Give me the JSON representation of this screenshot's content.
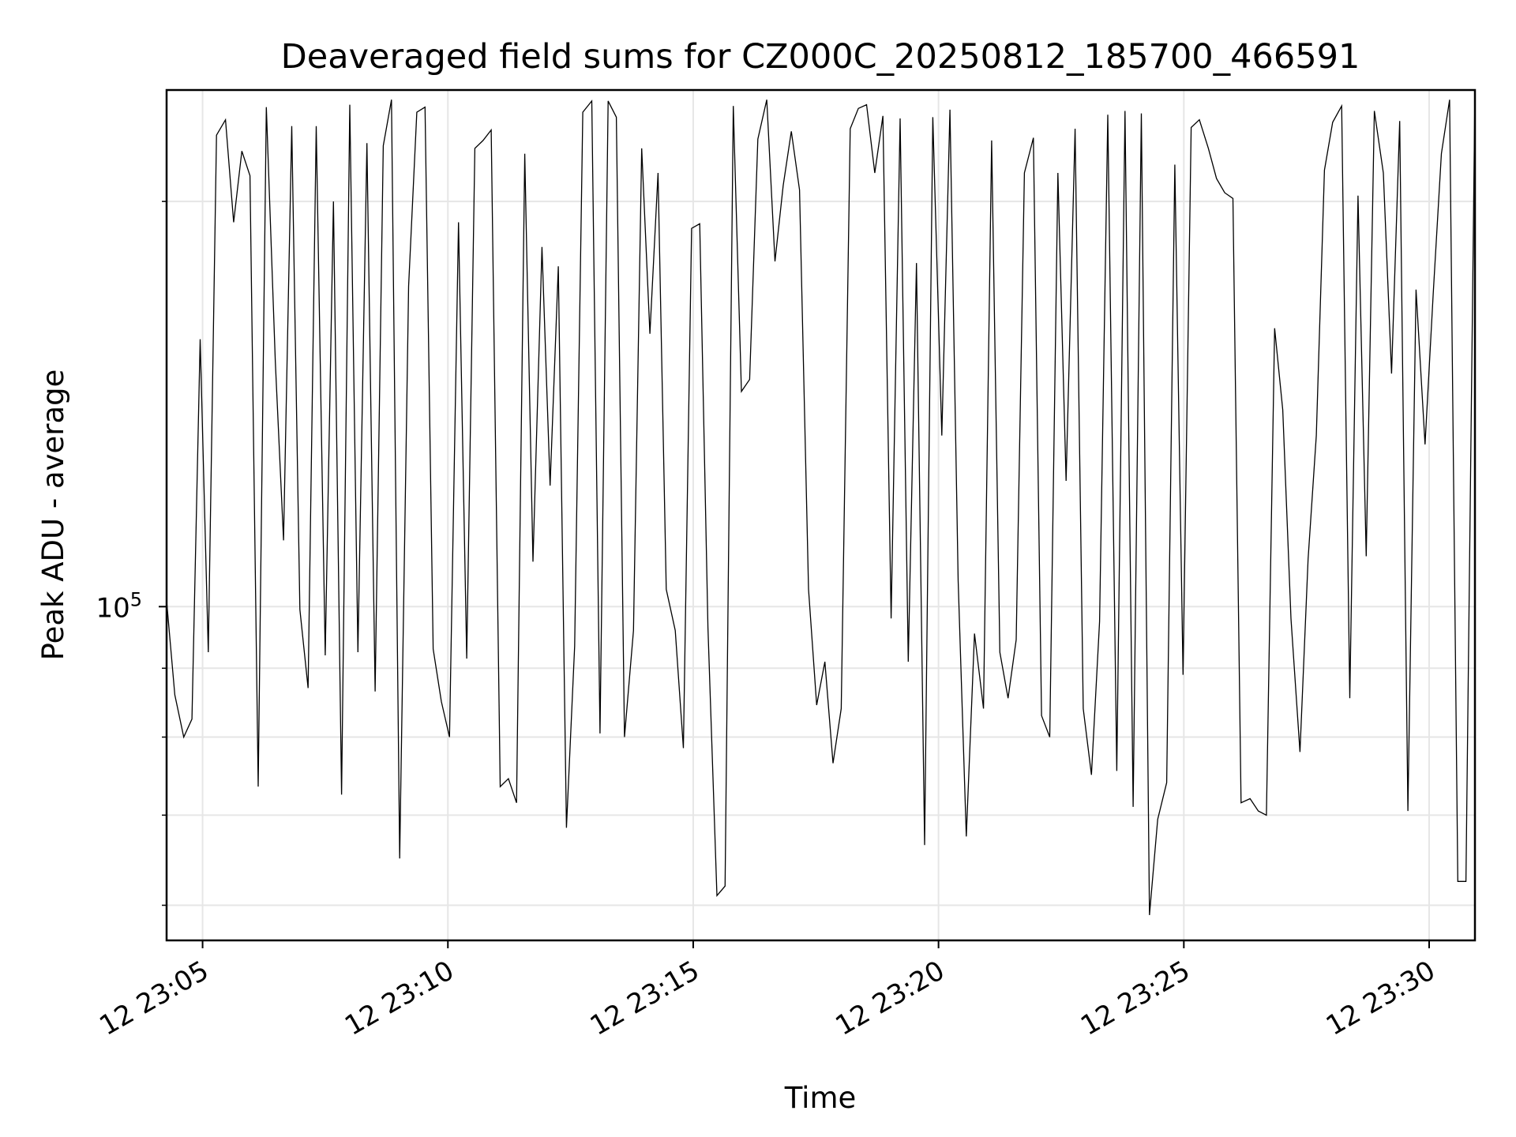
{
  "chart_data": {
    "type": "line",
    "title": "Deaveraged field sums for CZ000C_20250812_185700_466591",
    "xlabel": "Time",
    "ylabel": "Peak ADU - average",
    "y_scale": "log",
    "grid": true,
    "line_color": "#000000",
    "xlim": [
      "12 23:04:16",
      "12 23:30:56"
    ],
    "ylim": [
      56500,
      242000
    ],
    "x_ticks": [
      {
        "value": "12 23:05:00",
        "label": "12 23:05"
      },
      {
        "value": "12 23:10:00",
        "label": "12 23:10"
      },
      {
        "value": "12 23:15:00",
        "label": "12 23:15"
      },
      {
        "value": "12 23:20:00",
        "label": "12 23:20"
      },
      {
        "value": "12 23:25:00",
        "label": "12 23:25"
      },
      {
        "value": "12 23:30:00",
        "label": "12 23:30"
      }
    ],
    "y_major_ticks": [
      {
        "value": 100000,
        "label_base": "10",
        "label_exp": "5"
      }
    ],
    "y_minor_ticks": [
      60000,
      70000,
      80000,
      90000,
      200000
    ],
    "series": [
      {
        "x": [
          "23:04:16",
          "23:04:26",
          "23:04:37",
          "23:04:47",
          "23:04:57",
          "23:05:07",
          "23:05:17",
          "23:05:28",
          "23:05:38",
          "23:05:48",
          "23:05:58",
          "23:06:08",
          "23:06:18",
          "23:06:29",
          "23:06:39",
          "23:06:49",
          "23:06:59",
          "23:07:09",
          "23:07:19",
          "23:07:30",
          "23:07:40",
          "23:07:50",
          "23:08:00",
          "23:08:10",
          "23:08:21",
          "23:08:31",
          "23:08:41",
          "23:08:51",
          "23:09:01",
          "23:09:12",
          "23:09:22",
          "23:09:32",
          "23:09:42",
          "23:09:52",
          "23:10:02",
          "23:10:13",
          "23:10:23",
          "23:10:33",
          "23:10:43",
          "23:10:53",
          "23:11:04",
          "23:11:14",
          "23:11:24",
          "23:11:34",
          "23:11:44",
          "23:11:55",
          "23:12:05",
          "23:12:15",
          "23:12:25",
          "23:12:35",
          "23:12:45",
          "23:12:56",
          "23:13:06",
          "23:13:16",
          "23:13:26",
          "23:13:36",
          "23:13:47",
          "23:13:57",
          "23:14:07",
          "23:14:17",
          "23:14:27",
          "23:14:38",
          "23:14:48",
          "23:14:58",
          "23:15:08",
          "23:15:18",
          "23:15:29",
          "23:15:39",
          "23:15:49",
          "23:15:59",
          "23:16:09",
          "23:16:19",
          "23:16:30",
          "23:16:40",
          "23:16:50",
          "23:17:00",
          "23:17:10",
          "23:17:21",
          "23:17:31",
          "23:17:41",
          "23:17:51",
          "23:18:01",
          "23:18:12",
          "23:18:22",
          "23:18:32",
          "23:18:42",
          "23:18:52",
          "23:19:02",
          "23:19:13",
          "23:19:23",
          "23:19:33",
          "23:19:43",
          "23:19:53",
          "23:20:04",
          "23:20:14",
          "23:20:24",
          "23:20:34",
          "23:20:44",
          "23:20:55",
          "23:21:05",
          "23:21:15",
          "23:21:25",
          "23:21:35",
          "23:21:45",
          "23:21:56",
          "23:22:06",
          "23:22:16",
          "23:22:26",
          "23:22:36",
          "23:22:47",
          "23:22:57",
          "23:23:07",
          "23:23:17",
          "23:23:27",
          "23:23:38",
          "23:23:48",
          "23:23:58",
          "23:24:08",
          "23:24:18",
          "23:24:28",
          "23:24:39",
          "23:24:49",
          "23:24:59",
          "23:25:09",
          "23:25:19",
          "23:25:30",
          "23:25:40",
          "23:25:50",
          "23:26:00",
          "23:26:10",
          "23:26:21",
          "23:26:31",
          "23:26:41",
          "23:26:51",
          "23:27:01",
          "23:27:11",
          "23:27:22",
          "23:27:32",
          "23:27:42",
          "23:27:52",
          "23:28:02",
          "23:28:13",
          "23:28:23",
          "23:28:33",
          "23:28:43",
          "23:28:53",
          "23:29:04",
          "23:29:14",
          "23:29:24",
          "23:29:34",
          "23:29:44",
          "23:29:55",
          "23:30:05",
          "23:30:15",
          "23:30:25",
          "23:30:35",
          "23:30:45",
          "23:30:56"
        ],
        "y": [
          101000,
          86000,
          80000,
          82500,
          158000,
          92500,
          224000,
          230000,
          193000,
          218000,
          209000,
          73500,
          235000,
          152000,
          112000,
          227500,
          99500,
          87000,
          227500,
          92000,
          200000,
          72500,
          236000,
          92500,
          221000,
          86500,
          220000,
          238000,
          65000,
          173000,
          233000,
          235000,
          93000,
          85000,
          80000,
          193000,
          91500,
          219000,
          222000,
          226000,
          73500,
          74500,
          71500,
          217000,
          108000,
          185000,
          123000,
          179000,
          68500,
          93500,
          233000,
          237500,
          80500,
          237500,
          231000,
          80000,
          96000,
          219000,
          159500,
          210000,
          103000,
          96000,
          78500,
          191000,
          192500,
          96500,
          61000,
          62000,
          235500,
          144500,
          147500,
          222500,
          238000,
          180500,
          205500,
          225500,
          204000,
          103000,
          84500,
          91000,
          76500,
          84000,
          226500,
          234500,
          236000,
          210000,
          231500,
          98000,
          230500,
          91000,
          180000,
          66500,
          231000,
          134000,
          234000,
          104500,
          67500,
          95500,
          84000,
          222000,
          92500,
          85500,
          94500,
          210000,
          223000,
          83000,
          80000,
          210000,
          124000,
          226500,
          84000,
          75000,
          97500,
          232000,
          75500,
          233500,
          71000,
          232500,
          59000,
          69500,
          74000,
          213000,
          89000,
          227000,
          230000,
          219000,
          208000,
          203000,
          201000,
          71500,
          72000,
          70500,
          70000,
          161000,
          140000,
          98000,
          78000,
          108500,
          134000,
          211000,
          229000,
          235500,
          85500,
          202000,
          109000,
          233500,
          210000,
          149000,
          229500,
          70500,
          172000,
          132000,
          171000,
          217000,
          238000,
          62500,
          62500,
          242000
        ]
      }
    ]
  }
}
